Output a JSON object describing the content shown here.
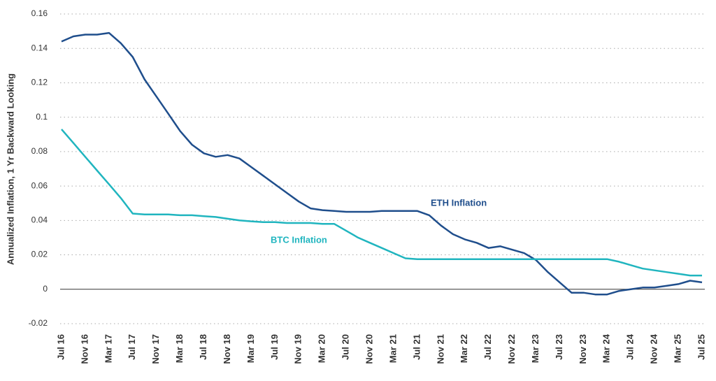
{
  "chart_data": {
    "type": "line",
    "y_label": "Annualized Inflation, 1 Yr Backward Looking",
    "categories": [
      "Jul 16",
      null,
      "Nov 16",
      null,
      "Mar 17",
      null,
      "Jul 17",
      null,
      "Nov 17",
      null,
      "Mar 18",
      null,
      "Jul 18",
      null,
      "Nov 18",
      null,
      "Mar 19",
      null,
      "Jul 19",
      null,
      "Nov 19",
      null,
      "Mar 20",
      null,
      "Jul 20",
      null,
      "Nov 20",
      null,
      "Mar 21",
      null,
      "Jul 21",
      null,
      "Nov 21",
      null,
      "Mar 22",
      null,
      "Jul 22",
      null,
      "Nov 22",
      null,
      "Mar 23",
      null,
      "Jul 23",
      null,
      "Nov 23",
      null,
      "Mar 24",
      null,
      "Jul 24",
      null,
      "Nov 24",
      null,
      "Mar 25",
      null,
      "Jul 25"
    ],
    "series": [
      {
        "name": "ETH Inflation",
        "color": "#1f4e8c",
        "values": [
          0.144,
          0.147,
          0.148,
          0.148,
          0.149,
          0.143,
          0.135,
          0.122,
          0.112,
          0.102,
          0.092,
          0.084,
          0.079,
          0.077,
          0.078,
          0.076,
          0.071,
          0.066,
          0.061,
          0.056,
          0.051,
          0.047,
          0.046,
          0.0455,
          0.045,
          0.045,
          0.045,
          0.0455,
          0.0455,
          0.0455,
          0.0455,
          0.043,
          0.037,
          0.032,
          0.029,
          0.027,
          0.024,
          0.025,
          0.023,
          0.021,
          0.017,
          0.01,
          0.004,
          -0.002,
          -0.002,
          -0.003,
          -0.003,
          -0.001,
          0,
          0.001,
          0.001,
          0.002,
          0.003,
          0.005,
          0.004
        ]
      },
      {
        "name": "BTC Inflation",
        "color": "#20b5bf",
        "values": [
          0.093,
          0.085,
          0.077,
          0.069,
          0.061,
          0.053,
          0.044,
          0.0435,
          0.0435,
          0.0435,
          0.043,
          0.043,
          0.0425,
          0.042,
          0.041,
          0.04,
          0.0395,
          0.039,
          0.039,
          0.0385,
          0.0385,
          0.0385,
          0.038,
          0.038,
          0.034,
          0.03,
          0.027,
          0.024,
          0.021,
          0.018,
          0.0175,
          0.0175,
          0.0175,
          0.0175,
          0.0175,
          0.0175,
          0.0175,
          0.0175,
          0.0175,
          0.0175,
          0.0175,
          0.0175,
          0.0175,
          0.0175,
          0.0175,
          0.0175,
          0.0175,
          0.016,
          0.014,
          0.012,
          0.011,
          0.01,
          0.009,
          0.008,
          0.008
        ]
      }
    ],
    "ylim": [
      -0.02,
      0.16
    ],
    "yticks": [
      -0.02,
      0,
      0.02,
      0.04,
      0.06,
      0.08,
      0.1,
      0.12,
      0.14,
      0.16
    ],
    "grid": true
  }
}
